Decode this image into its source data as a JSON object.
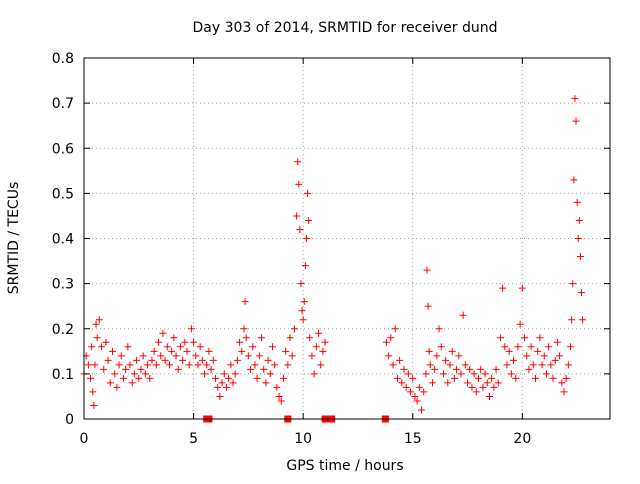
{
  "chart_data": {
    "type": "scatter",
    "title": "Day 303 of 2014, SRMTID for receiver dund",
    "xlabel": "GPS time / hours",
    "ylabel": "SRMTID / TECUs",
    "xlim": [
      0,
      24
    ],
    "ylim": [
      0,
      0.8
    ],
    "xticks": [
      0,
      5,
      10,
      15,
      20
    ],
    "yticks": [
      0,
      0.1,
      0.2,
      0.3,
      0.4,
      0.5,
      0.6,
      0.7,
      0.8
    ],
    "xtick_labels": [
      "0",
      "5",
      "10",
      "15",
      "20"
    ],
    "ytick_labels": [
      "0",
      "0.1",
      "0.2",
      "0.3",
      "0.4",
      "0.5",
      "0.6",
      "0.7",
      "0.8"
    ],
    "grid": true,
    "marker": "+",
    "color": "#ff0000",
    "series": [
      {
        "name": "SRMTID",
        "points": [
          [
            0.0,
            0.1
          ],
          [
            0.1,
            0.14
          ],
          [
            0.2,
            0.12
          ],
          [
            0.3,
            0.09
          ],
          [
            0.35,
            0.16
          ],
          [
            0.4,
            0.06
          ],
          [
            0.45,
            0.03
          ],
          [
            0.5,
            0.12
          ],
          [
            0.55,
            0.21
          ],
          [
            0.6,
            0.18
          ],
          [
            0.7,
            0.22
          ],
          [
            0.8,
            0.16
          ],
          [
            0.9,
            0.11
          ],
          [
            1.0,
            0.17
          ],
          [
            1.1,
            0.13
          ],
          [
            1.2,
            0.08
          ],
          [
            1.3,
            0.15
          ],
          [
            1.4,
            0.1
          ],
          [
            1.5,
            0.07
          ],
          [
            1.6,
            0.12
          ],
          [
            1.7,
            0.14
          ],
          [
            1.8,
            0.09
          ],
          [
            1.9,
            0.11
          ],
          [
            2.0,
            0.16
          ],
          [
            2.1,
            0.12
          ],
          [
            2.2,
            0.08
          ],
          [
            2.3,
            0.1
          ],
          [
            2.4,
            0.13
          ],
          [
            2.5,
            0.09
          ],
          [
            2.6,
            0.11
          ],
          [
            2.7,
            0.14
          ],
          [
            2.8,
            0.1
          ],
          [
            2.9,
            0.12
          ],
          [
            3.0,
            0.09
          ],
          [
            3.1,
            0.13
          ],
          [
            3.2,
            0.15
          ],
          [
            3.3,
            0.12
          ],
          [
            3.4,
            0.17
          ],
          [
            3.5,
            0.14
          ],
          [
            3.6,
            0.19
          ],
          [
            3.7,
            0.13
          ],
          [
            3.8,
            0.16
          ],
          [
            3.9,
            0.12
          ],
          [
            4.0,
            0.15
          ],
          [
            4.1,
            0.18
          ],
          [
            4.2,
            0.14
          ],
          [
            4.3,
            0.11
          ],
          [
            4.4,
            0.16
          ],
          [
            4.5,
            0.13
          ],
          [
            4.6,
            0.17
          ],
          [
            4.7,
            0.15
          ],
          [
            4.8,
            0.12
          ],
          [
            4.9,
            0.2
          ],
          [
            5.0,
            0.17
          ],
          [
            5.1,
            0.14
          ],
          [
            5.2,
            0.12
          ],
          [
            5.3,
            0.16
          ],
          [
            5.4,
            0.13
          ],
          [
            5.5,
            0.1
          ],
          [
            5.6,
            0.12
          ],
          [
            5.7,
            0.15
          ],
          [
            5.8,
            0.11
          ],
          [
            5.9,
            0.13
          ],
          [
            6.0,
            0.09
          ],
          [
            6.1,
            0.07
          ],
          [
            6.2,
            0.05
          ],
          [
            6.3,
            0.08
          ],
          [
            6.4,
            0.1
          ],
          [
            6.5,
            0.07
          ],
          [
            6.6,
            0.09
          ],
          [
            6.7,
            0.12
          ],
          [
            6.8,
            0.08
          ],
          [
            6.9,
            0.1
          ],
          [
            7.0,
            0.13
          ],
          [
            7.1,
            0.17
          ],
          [
            7.2,
            0.15
          ],
          [
            7.3,
            0.2
          ],
          [
            7.35,
            0.26
          ],
          [
            7.4,
            0.18
          ],
          [
            7.5,
            0.14
          ],
          [
            7.6,
            0.11
          ],
          [
            7.7,
            0.16
          ],
          [
            7.8,
            0.12
          ],
          [
            7.9,
            0.09
          ],
          [
            8.0,
            0.14
          ],
          [
            8.1,
            0.18
          ],
          [
            8.2,
            0.11
          ],
          [
            8.3,
            0.08
          ],
          [
            8.4,
            0.13
          ],
          [
            8.5,
            0.1
          ],
          [
            8.6,
            0.16
          ],
          [
            8.7,
            0.12
          ],
          [
            8.8,
            0.07
          ],
          [
            8.9,
            0.05
          ],
          [
            9.0,
            0.04
          ],
          [
            9.1,
            0.09
          ],
          [
            9.2,
            0.15
          ],
          [
            9.3,
            0.12
          ],
          [
            9.4,
            0.18
          ],
          [
            9.5,
            0.14
          ],
          [
            9.6,
            0.2
          ],
          [
            9.7,
            0.45
          ],
          [
            9.75,
            0.57
          ],
          [
            9.8,
            0.52
          ],
          [
            9.85,
            0.42
          ],
          [
            9.9,
            0.3
          ],
          [
            9.95,
            0.24
          ],
          [
            10.0,
            0.22
          ],
          [
            10.05,
            0.26
          ],
          [
            10.1,
            0.34
          ],
          [
            10.15,
            0.4
          ],
          [
            10.2,
            0.5
          ],
          [
            10.25,
            0.44
          ],
          [
            10.3,
            0.18
          ],
          [
            10.4,
            0.14
          ],
          [
            10.5,
            0.1
          ],
          [
            10.6,
            0.16
          ],
          [
            10.7,
            0.19
          ],
          [
            10.8,
            0.12
          ],
          [
            10.9,
            0.15
          ],
          [
            11.0,
            0.17
          ],
          [
            13.8,
            0.17
          ],
          [
            13.9,
            0.14
          ],
          [
            14.0,
            0.18
          ],
          [
            14.1,
            0.12
          ],
          [
            14.2,
            0.2
          ],
          [
            14.3,
            0.09
          ],
          [
            14.4,
            0.13
          ],
          [
            14.5,
            0.08
          ],
          [
            14.6,
            0.11
          ],
          [
            14.7,
            0.07
          ],
          [
            14.8,
            0.1
          ],
          [
            14.9,
            0.06
          ],
          [
            15.0,
            0.09
          ],
          [
            15.1,
            0.05
          ],
          [
            15.2,
            0.04
          ],
          [
            15.3,
            0.07
          ],
          [
            15.4,
            0.02
          ],
          [
            15.5,
            0.06
          ],
          [
            15.6,
            0.1
          ],
          [
            15.65,
            0.33
          ],
          [
            15.7,
            0.25
          ],
          [
            15.75,
            0.15
          ],
          [
            15.8,
            0.12
          ],
          [
            15.9,
            0.08
          ],
          [
            16.0,
            0.11
          ],
          [
            16.1,
            0.14
          ],
          [
            16.2,
            0.2
          ],
          [
            16.3,
            0.16
          ],
          [
            16.4,
            0.1
          ],
          [
            16.5,
            0.13
          ],
          [
            16.6,
            0.08
          ],
          [
            16.7,
            0.12
          ],
          [
            16.8,
            0.15
          ],
          [
            16.9,
            0.09
          ],
          [
            17.0,
            0.11
          ],
          [
            17.1,
            0.14
          ],
          [
            17.2,
            0.1
          ],
          [
            17.3,
            0.23
          ],
          [
            17.4,
            0.12
          ],
          [
            17.5,
            0.08
          ],
          [
            17.6,
            0.11
          ],
          [
            17.7,
            0.07
          ],
          [
            17.8,
            0.1
          ],
          [
            17.9,
            0.06
          ],
          [
            18.0,
            0.09
          ],
          [
            18.1,
            0.11
          ],
          [
            18.2,
            0.07
          ],
          [
            18.3,
            0.1
          ],
          [
            18.4,
            0.08
          ],
          [
            18.5,
            0.05
          ],
          [
            18.6,
            0.09
          ],
          [
            18.7,
            0.07
          ],
          [
            18.8,
            0.11
          ],
          [
            18.9,
            0.08
          ],
          [
            19.0,
            0.18
          ],
          [
            19.1,
            0.29
          ],
          [
            19.2,
            0.16
          ],
          [
            19.3,
            0.12
          ],
          [
            19.4,
            0.15
          ],
          [
            19.5,
            0.1
          ],
          [
            19.6,
            0.13
          ],
          [
            19.7,
            0.09
          ],
          [
            19.8,
            0.16
          ],
          [
            19.9,
            0.21
          ],
          [
            20.0,
            0.29
          ],
          [
            20.1,
            0.18
          ],
          [
            20.2,
            0.14
          ],
          [
            20.3,
            0.11
          ],
          [
            20.4,
            0.16
          ],
          [
            20.5,
            0.12
          ],
          [
            20.6,
            0.09
          ],
          [
            20.7,
            0.15
          ],
          [
            20.8,
            0.18
          ],
          [
            20.9,
            0.12
          ],
          [
            21.0,
            0.14
          ],
          [
            21.1,
            0.1
          ],
          [
            21.2,
            0.16
          ],
          [
            21.3,
            0.12
          ],
          [
            21.4,
            0.09
          ],
          [
            21.5,
            0.13
          ],
          [
            21.6,
            0.17
          ],
          [
            21.7,
            0.14
          ],
          [
            21.8,
            0.08
          ],
          [
            21.9,
            0.06
          ],
          [
            22.0,
            0.09
          ],
          [
            22.1,
            0.12
          ],
          [
            22.2,
            0.16
          ],
          [
            22.25,
            0.22
          ],
          [
            22.3,
            0.3
          ],
          [
            22.35,
            0.53
          ],
          [
            22.4,
            0.71
          ],
          [
            22.45,
            0.66
          ],
          [
            22.5,
            0.48
          ],
          [
            22.55,
            0.4
          ],
          [
            22.6,
            0.44
          ],
          [
            22.65,
            0.36
          ],
          [
            22.7,
            0.28
          ],
          [
            22.75,
            0.22
          ]
        ]
      }
    ],
    "gap_markers": [
      5.6,
      5.7,
      9.3,
      11.0,
      11.2,
      11.3,
      13.75
    ]
  }
}
